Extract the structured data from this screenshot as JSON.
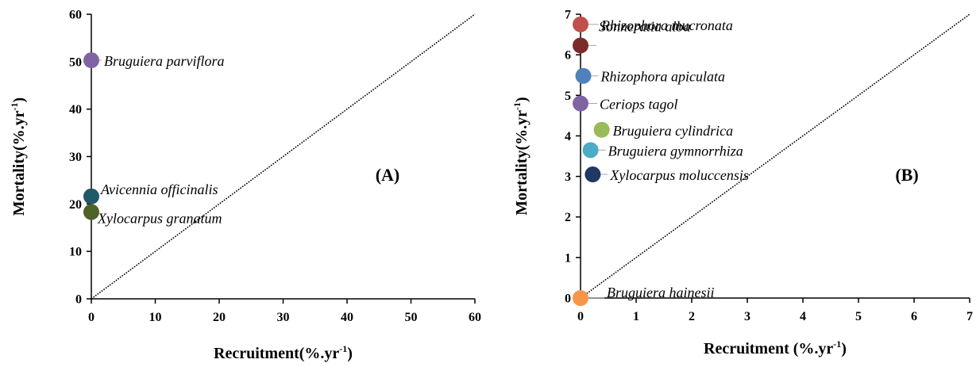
{
  "chart_data": [
    {
      "type": "scatter",
      "panel_label": "(A)",
      "xlabel": "Recruitment(%.yr",
      "ylabel": "Mortality(%.yr",
      "unit_sup": "-1",
      "xlim": [
        0,
        60
      ],
      "ylim": [
        0,
        60
      ],
      "xticks": [
        "0",
        "10",
        "20",
        "30",
        "40",
        "50",
        "60"
      ],
      "yticks": [
        "0",
        "10",
        "20",
        "30",
        "40",
        "50",
        "60"
      ],
      "reference_line": "1:1 dotted",
      "grid": false,
      "points": [
        {
          "label": "Bruguiera parviflora",
          "x": 0,
          "y": 50.3,
          "color": "#8064a2"
        },
        {
          "label": "Avicennia officinalis",
          "x": 0,
          "y": 21.6,
          "color": "#215968"
        },
        {
          "label": "Xylocarpus granatum",
          "x": 0,
          "y": 18.3,
          "color": "#4f6228"
        }
      ]
    },
    {
      "type": "scatter",
      "panel_label": "(B)",
      "xlabel": "Recruitment (%.yr",
      "ylabel": "Mortality(%.yr",
      "unit_sup": "-1",
      "xlim": [
        0,
        7
      ],
      "ylim": [
        0,
        7
      ],
      "xticks": [
        "0",
        "1",
        "2",
        "3",
        "4",
        "5",
        "6",
        "7"
      ],
      "yticks": [
        "0",
        "1",
        "2",
        "3",
        "4",
        "5",
        "6",
        "7"
      ],
      "reference_line": "1:1 dotted",
      "grid": false,
      "points": [
        {
          "label": "Rhizophora mucronata",
          "x": 0,
          "y": 6.75,
          "color": "#c0504d"
        },
        {
          "label": "Sonneratia alba",
          "x": 0,
          "y": 6.23,
          "color": "#7b2c2a"
        },
        {
          "label": "Rhizophora apiculata",
          "x": 0.05,
          "y": 5.48,
          "color": "#4f81bd"
        },
        {
          "label": "Ceriops tagol",
          "x": 0,
          "y": 4.8,
          "color": "#8064a2"
        },
        {
          "label": "Bruguiera cylindrica",
          "x": 0.38,
          "y": 4.15,
          "color": "#9bbb59"
        },
        {
          "label": "Bruguiera gymnorrhiza",
          "x": 0.18,
          "y": 3.65,
          "color": "#4bacc6"
        },
        {
          "label": "Xylocarpus moluccensis",
          "x": 0.22,
          "y": 3.05,
          "color": "#1f3864"
        },
        {
          "label": "Bruguiera hainesii",
          "x": 0,
          "y": 0,
          "color": "#f79646"
        }
      ]
    }
  ]
}
